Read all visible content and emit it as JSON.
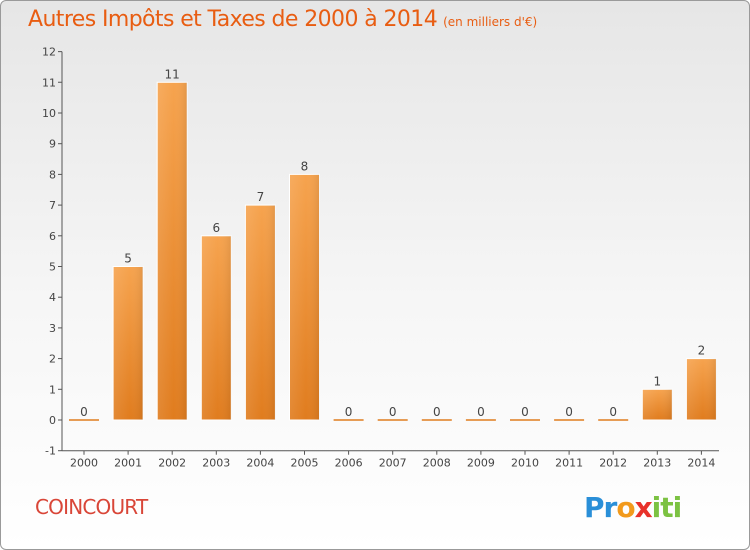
{
  "title": "Autres Impôts et Taxes de 2000 à 2014",
  "subtitle": "(en milliers d'€)",
  "commune": "COINCOURT",
  "brand": {
    "p1": "Pr",
    "p2": "o",
    "p3": "x",
    "p4": "iti"
  },
  "colors": {
    "bar_light": "#f6a34e",
    "bar_dark": "#e07c1e",
    "title": "#e85d12",
    "commune": "#d94638"
  },
  "chart_data": {
    "type": "bar",
    "categories": [
      "2000",
      "2001",
      "2002",
      "2003",
      "2004",
      "2005",
      "2006",
      "2007",
      "2008",
      "2009",
      "2010",
      "2011",
      "2012",
      "2013",
      "2014"
    ],
    "values": [
      0,
      5,
      11,
      6,
      7,
      8,
      0,
      0,
      0,
      0,
      0,
      0,
      0,
      1,
      2
    ],
    "ylim": [
      -1,
      12
    ],
    "yticks": [
      "-1",
      "0",
      "1",
      "2",
      "3",
      "4",
      "5",
      "6",
      "7",
      "8",
      "9",
      "10",
      "11",
      "12"
    ],
    "grid": false,
    "legend": "none"
  }
}
